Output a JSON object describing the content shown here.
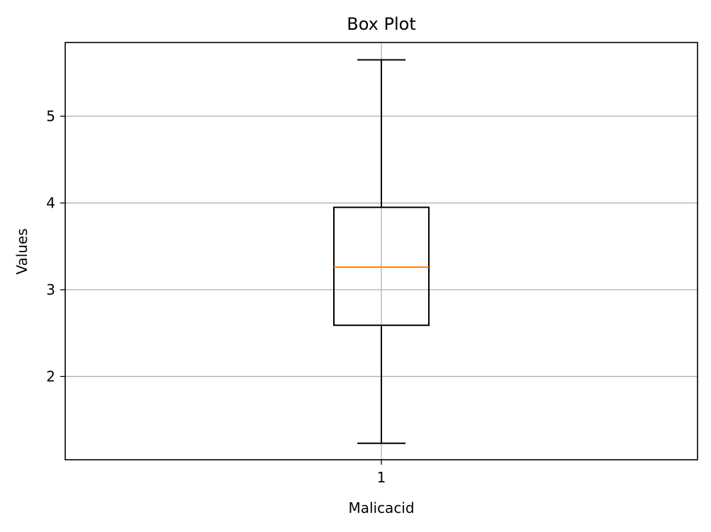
{
  "chart_data": {
    "type": "box",
    "title": "Box Plot",
    "xlabel": "Malicacid",
    "ylabel": "Values",
    "categories": [
      "1"
    ],
    "y_ticks": [
      "2",
      "3",
      "4",
      "5"
    ],
    "ylim": [
      1.04,
      5.85
    ],
    "grid": true,
    "boxes": [
      {
        "category": "1",
        "whisker_low": 1.23,
        "q1": 2.59,
        "median": 3.26,
        "q3": 3.95,
        "whisker_high": 5.65
      }
    ],
    "colors": {
      "box": "#000000",
      "median": "#ff7f0e",
      "grid": "#b0b0b0"
    }
  }
}
